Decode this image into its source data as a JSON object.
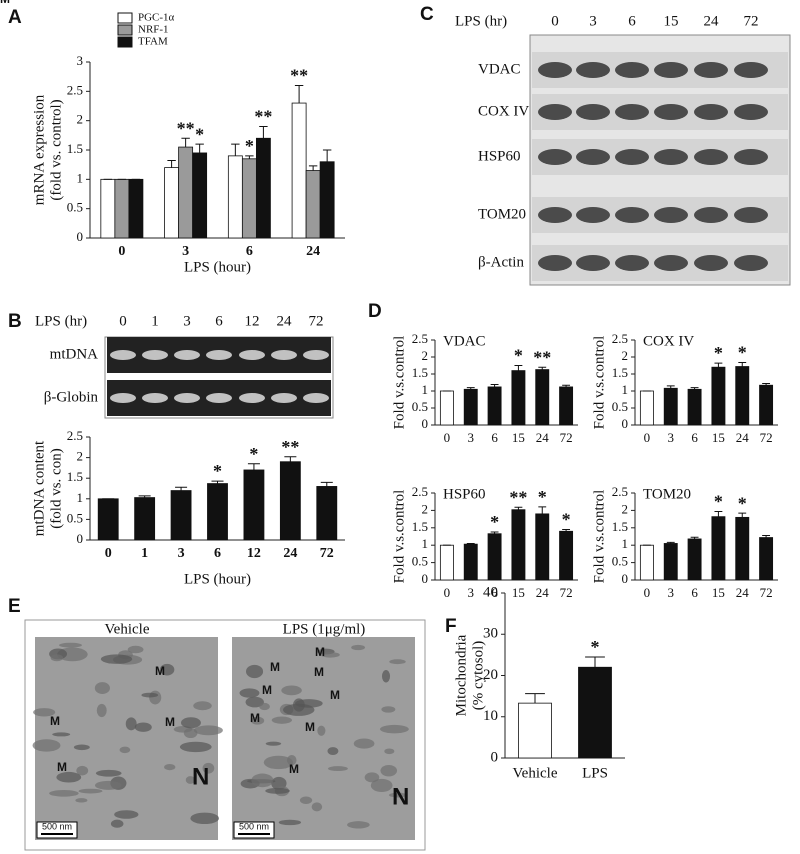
{
  "chart_data": [
    {
      "type": "bar",
      "panel": "A",
      "categories": [
        "0",
        "3",
        "6",
        "24"
      ],
      "series": [
        {
          "name": "PGC-1α",
          "color": "#ffffff",
          "values": [
            1,
            1.2,
            1.4,
            2.3
          ],
          "errors": [
            0,
            0.12,
            0.2,
            0.3
          ],
          "stars": [
            null,
            null,
            null,
            "**"
          ]
        },
        {
          "name": "NRF-1",
          "color": "#9a9a9a",
          "values": [
            1,
            1.55,
            1.35,
            1.15
          ],
          "errors": [
            0,
            0.15,
            0.05,
            0.08
          ],
          "stars": [
            null,
            "**",
            "*",
            null
          ]
        },
        {
          "name": "TFAM",
          "color": "#111111",
          "values": [
            1,
            1.45,
            1.7,
            1.3
          ],
          "errors": [
            0,
            0.15,
            0.2,
            0.2
          ],
          "stars": [
            null,
            "*",
            "**",
            null
          ]
        }
      ],
      "ylabel": [
        "mRNA expression",
        "(fold vs. control)"
      ],
      "xlabel": "LPS (hour)",
      "ylim": [
        0,
        3
      ],
      "yticks": [
        0,
        0.5,
        1,
        1.5,
        2,
        2.5,
        3
      ]
    },
    {
      "type": "bar",
      "panel": "B",
      "categories": [
        "0",
        "1",
        "3",
        "6",
        "12",
        "24",
        "72"
      ],
      "values": [
        1,
        1.03,
        1.2,
        1.37,
        1.7,
        1.9,
        1.3
      ],
      "errors": [
        0,
        0.04,
        0.08,
        0.06,
        0.15,
        0.12,
        0.1
      ],
      "stars": [
        null,
        null,
        null,
        "*",
        "*",
        "**",
        null
      ],
      "colors": [
        "#111111",
        "#111111",
        "#111111",
        "#111111",
        "#111111",
        "#111111",
        "#111111"
      ],
      "ylabel": [
        "mtDNA content",
        "(fold vs. con)"
      ],
      "xlabel": "LPS (hour)",
      "ylim": [
        0,
        2.5
      ],
      "yticks": [
        0,
        0.5,
        1,
        1.5,
        2,
        2.5
      ]
    },
    {
      "type": "bar",
      "panel": "D",
      "title": "VDAC",
      "categories": [
        "0",
        "3",
        "6",
        "15",
        "24",
        "72"
      ],
      "values": [
        1,
        1.05,
        1.12,
        1.6,
        1.63,
        1.12
      ],
      "errors": [
        0,
        0.05,
        0.07,
        0.15,
        0.07,
        0.05
      ],
      "stars": [
        null,
        null,
        null,
        "*",
        "**",
        null
      ],
      "colors": [
        "#ffffff",
        "#111111",
        "#111111",
        "#111111",
        "#111111",
        "#111111"
      ],
      "ylabel": [
        "Fold v.s.control"
      ],
      "ylim": [
        0,
        2.5
      ],
      "yticks": [
        0,
        0.5,
        1,
        1.5,
        2,
        2.5
      ]
    },
    {
      "type": "bar",
      "title": "COX IV",
      "categories": [
        "0",
        "3",
        "6",
        "15",
        "24",
        "72"
      ],
      "values": [
        1,
        1.08,
        1.05,
        1.7,
        1.72,
        1.17
      ],
      "errors": [
        0,
        0.07,
        0.05,
        0.12,
        0.12,
        0.05
      ],
      "stars": [
        null,
        null,
        null,
        "*",
        "*",
        null
      ],
      "colors": [
        "#ffffff",
        "#111111",
        "#111111",
        "#111111",
        "#111111",
        "#111111"
      ],
      "ylabel": [
        "Fold v.s.control"
      ],
      "ylim": [
        0,
        2.5
      ],
      "yticks": [
        0,
        0.5,
        1,
        1.5,
        2,
        2.5
      ]
    },
    {
      "type": "bar",
      "title": "HSP60",
      "categories": [
        "0",
        "3",
        "6",
        "15",
        "24",
        "72"
      ],
      "values": [
        1,
        1.03,
        1.33,
        2.02,
        1.9,
        1.4
      ],
      "errors": [
        0,
        0.02,
        0.05,
        0.07,
        0.2,
        0.05
      ],
      "stars": [
        null,
        null,
        "*",
        "**",
        "*",
        "*"
      ],
      "colors": [
        "#ffffff",
        "#111111",
        "#111111",
        "#111111",
        "#111111",
        "#111111"
      ],
      "ylabel": [
        "Fold v.s.control"
      ],
      "ylim": [
        0,
        2.5
      ],
      "yticks": [
        0,
        0.5,
        1,
        1.5,
        2,
        2.5
      ]
    },
    {
      "type": "bar",
      "title": "TOM20",
      "categories": [
        "0",
        "3",
        "6",
        "15",
        "24",
        "72"
      ],
      "values": [
        1,
        1.05,
        1.18,
        1.82,
        1.8,
        1.22
      ],
      "errors": [
        0,
        0.03,
        0.05,
        0.15,
        0.12,
        0.06
      ],
      "stars": [
        null,
        null,
        null,
        "*",
        "*",
        null
      ],
      "colors": [
        "#ffffff",
        "#111111",
        "#111111",
        "#111111",
        "#111111",
        "#111111"
      ],
      "ylabel": [
        "Fold v.s.control"
      ],
      "ylim": [
        0,
        2.5
      ],
      "yticks": [
        0,
        0.5,
        1,
        1.5,
        2,
        2.5
      ]
    },
    {
      "type": "bar",
      "panel": "F",
      "categories": [
        "Vehicle",
        "LPS"
      ],
      "values": [
        13.3,
        22
      ],
      "errors": [
        2.3,
        2.5
      ],
      "stars": [
        null,
        "*"
      ],
      "colors": [
        "#ffffff",
        "#111111"
      ],
      "ylabel": [
        "Mitochondria",
        "(% cytosol)"
      ],
      "ylim": [
        0,
        40
      ],
      "yticks": [
        0,
        10,
        20,
        30,
        40
      ]
    }
  ],
  "blots": [
    {
      "panel": "C",
      "header": "LPS (hr)",
      "lanes": [
        "0",
        "3",
        "6",
        "15",
        "24",
        "72"
      ],
      "rows": [
        "VDAC",
        "COX IV",
        "HSP60",
        "TOM20",
        "β-Actin"
      ]
    },
    {
      "header": "LPS (hr)",
      "lanes": [
        "0",
        "1",
        "3",
        "6",
        "12",
        "24",
        "72"
      ],
      "rows": [
        "mtDNA",
        "β-Globin"
      ]
    }
  ],
  "micrographs": {
    "panel": "E",
    "images": [
      {
        "title": "Vehicle",
        "labels": [
          "M",
          "M",
          "M",
          "M",
          "M",
          "N"
        ],
        "scale": "500 nm"
      },
      {
        "title": "LPS (1μg/ml)",
        "labels": [
          "M",
          "M",
          "M",
          "M",
          "M",
          "M",
          "M",
          "M",
          "N"
        ],
        "scale": "500 nm"
      }
    ]
  }
}
